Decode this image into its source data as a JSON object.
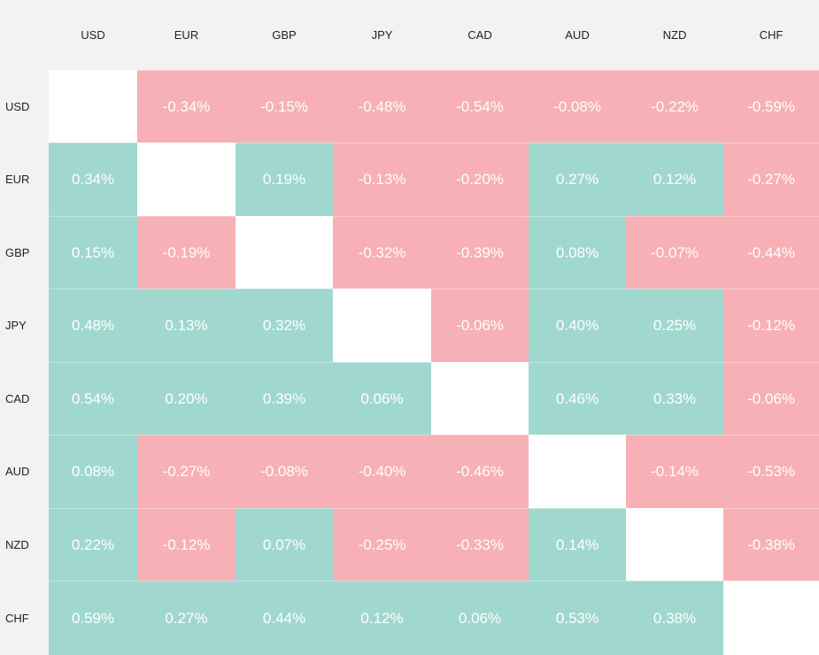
{
  "colors": {
    "positive": "#a0d8cf",
    "negative": "#f7b0b5",
    "diagonal": "#ffffff",
    "background": "#f2f2f2"
  },
  "chart_data": {
    "type": "heatmap",
    "rows": [
      "USD",
      "EUR",
      "GBP",
      "JPY",
      "CAD",
      "AUD",
      "NZD",
      "CHF"
    ],
    "columns": [
      "USD",
      "EUR",
      "GBP",
      "JPY",
      "CAD",
      "AUD",
      "NZD",
      "CHF"
    ],
    "labels": [
      [
        "",
        "-0.34%",
        "-0.15%",
        "-0.48%",
        "-0.54%",
        "-0.08%",
        "-0.22%",
        "-0.59%"
      ],
      [
        "0.34%",
        "",
        "0.19%",
        "-0.13%",
        "-0.20%",
        "0.27%",
        "0.12%",
        "-0.27%"
      ],
      [
        "0.15%",
        "-0.19%",
        "",
        "-0.32%",
        "-0.39%",
        "0.08%",
        "-0.07%",
        "-0.44%"
      ],
      [
        "0.48%",
        "0.13%",
        "0.32%",
        "",
        "-0.06%",
        "0.40%",
        "0.25%",
        "-0.12%"
      ],
      [
        "0.54%",
        "0.20%",
        "0.39%",
        "0.06%",
        "",
        "0.46%",
        "0.33%",
        "-0.06%"
      ],
      [
        "0.08%",
        "-0.27%",
        "-0.08%",
        "-0.40%",
        "-0.46%",
        "",
        "-0.14%",
        "-0.53%"
      ],
      [
        "0.22%",
        "-0.12%",
        "0.07%",
        "-0.25%",
        "-0.33%",
        "0.14%",
        "",
        "-0.38%"
      ],
      [
        "0.59%",
        "0.27%",
        "0.44%",
        "0.12%",
        "0.06%",
        "0.53%",
        "0.38%",
        ""
      ]
    ],
    "values": [
      [
        null,
        -0.34,
        -0.15,
        -0.48,
        -0.54,
        -0.08,
        -0.22,
        -0.59
      ],
      [
        0.34,
        null,
        0.19,
        -0.13,
        -0.2,
        0.27,
        0.12,
        -0.27
      ],
      [
        0.15,
        -0.19,
        null,
        -0.32,
        -0.39,
        0.08,
        -0.07,
        -0.44
      ],
      [
        0.48,
        0.13,
        0.32,
        null,
        -0.06,
        0.4,
        0.25,
        -0.12
      ],
      [
        0.54,
        0.2,
        0.39,
        0.06,
        null,
        0.46,
        0.33,
        -0.06
      ],
      [
        0.08,
        -0.27,
        -0.08,
        -0.4,
        -0.46,
        null,
        -0.14,
        -0.53
      ],
      [
        0.22,
        -0.12,
        0.07,
        -0.25,
        -0.33,
        0.14,
        null,
        -0.38
      ],
      [
        0.59,
        0.27,
        0.44,
        0.12,
        0.06,
        0.53,
        0.38,
        null
      ]
    ]
  }
}
